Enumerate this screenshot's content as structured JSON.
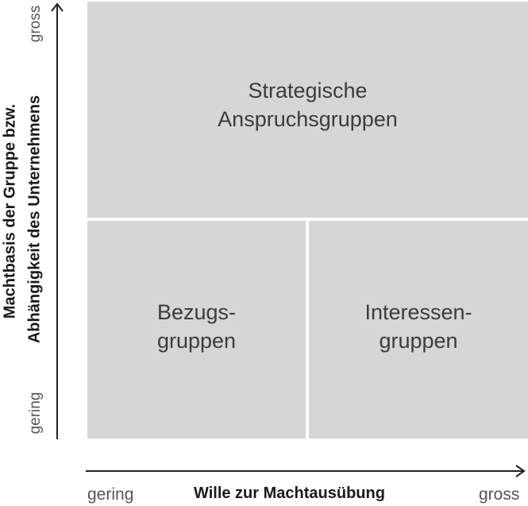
{
  "quadrants": {
    "top": {
      "line1": "Strategische",
      "line2": "Anspruchsgruppen"
    },
    "bottom_left": {
      "line1": "Bezugs-",
      "line2": "gruppen"
    },
    "bottom_right": {
      "line1": "Interessen-",
      "line2": "gruppen"
    }
  },
  "y_axis": {
    "title_line1": "Machtbasis der Gruppe bzw.",
    "title_line2": "Abhängigkeit des Unternehmens",
    "low": "gering",
    "high": "gross"
  },
  "x_axis": {
    "title": "Wille zur Machtausübung",
    "low": "gering",
    "high": "gross"
  },
  "colors": {
    "quadrant_fill": "#d6d6d6",
    "axis": "#222222"
  }
}
